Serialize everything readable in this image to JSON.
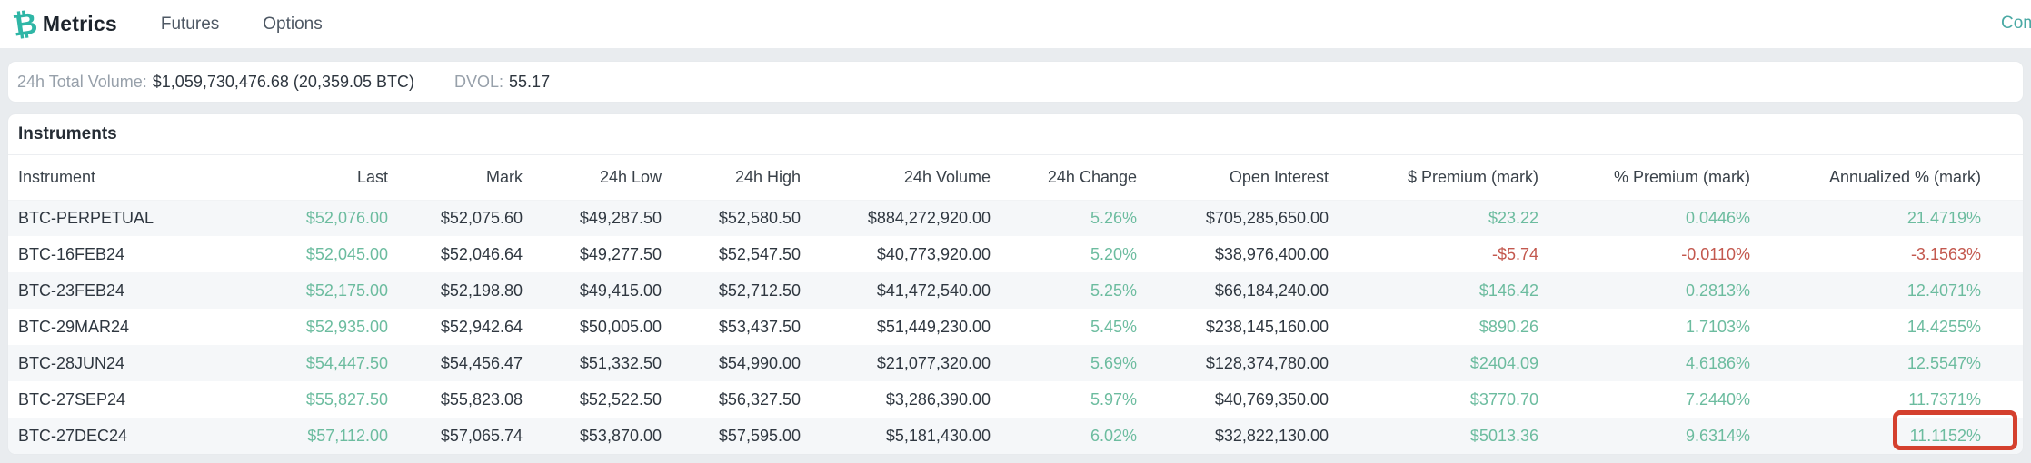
{
  "nav": {
    "brand": "Metrics",
    "brand_icon": "bitcoin-symbol",
    "items": [
      {
        "label": "Futures"
      },
      {
        "label": "Options"
      }
    ],
    "right_link": "Com"
  },
  "stats": {
    "volume_label": "24h Total Volume:",
    "volume_value": "$1,059,730,476.68 (20,359.05 BTC)",
    "dvol_label": "DVOL:",
    "dvol_value": "55.17"
  },
  "instruments": {
    "title": "Instruments",
    "columns": [
      "Instrument",
      "Last",
      "Mark",
      "24h Low",
      "24h High",
      "24h Volume",
      "24h Change",
      "Open Interest",
      "$ Premium (mark)",
      "% Premium (mark)",
      "Annualized % (mark)"
    ],
    "rows": [
      {
        "instrument": "BTC-PERPETUAL",
        "last": "$52,076.00",
        "mark": "$52,075.60",
        "low": "$49,287.50",
        "high": "$52,580.50",
        "volume": "$884,272,920.00",
        "change": "5.26%",
        "open_interest": "$705,285,650.00",
        "premium_usd": "$23.22",
        "premium_pct": "0.0446%",
        "annualized_pct": "21.4719%",
        "tone": "pos"
      },
      {
        "instrument": "BTC-16FEB24",
        "last": "$52,045.00",
        "mark": "$52,046.64",
        "low": "$49,277.50",
        "high": "$52,547.50",
        "volume": "$40,773,920.00",
        "change": "5.20%",
        "open_interest": "$38,976,400.00",
        "premium_usd": "-$5.74",
        "premium_pct": "-0.0110%",
        "annualized_pct": "-3.1563%",
        "tone": "neg"
      },
      {
        "instrument": "BTC-23FEB24",
        "last": "$52,175.00",
        "mark": "$52,198.80",
        "low": "$49,415.00",
        "high": "$52,712.50",
        "volume": "$41,472,540.00",
        "change": "5.25%",
        "open_interest": "$66,184,240.00",
        "premium_usd": "$146.42",
        "premium_pct": "0.2813%",
        "annualized_pct": "12.4071%",
        "tone": "pos"
      },
      {
        "instrument": "BTC-29MAR24",
        "last": "$52,935.00",
        "mark": "$52,942.64",
        "low": "$50,005.00",
        "high": "$53,437.50",
        "volume": "$51,449,230.00",
        "change": "5.45%",
        "open_interest": "$238,145,160.00",
        "premium_usd": "$890.26",
        "premium_pct": "1.7103%",
        "annualized_pct": "14.4255%",
        "tone": "pos"
      },
      {
        "instrument": "BTC-28JUN24",
        "last": "$54,447.50",
        "mark": "$54,456.47",
        "low": "$51,332.50",
        "high": "$54,990.00",
        "volume": "$21,077,320.00",
        "change": "5.69%",
        "open_interest": "$128,374,780.00",
        "premium_usd": "$2404.09",
        "premium_pct": "4.6186%",
        "annualized_pct": "12.5547%",
        "tone": "pos"
      },
      {
        "instrument": "BTC-27SEP24",
        "last": "$55,827.50",
        "mark": "$55,823.08",
        "low": "$52,522.50",
        "high": "$56,327.50",
        "volume": "$3,286,390.00",
        "change": "5.97%",
        "open_interest": "$40,769,350.00",
        "premium_usd": "$3770.70",
        "premium_pct": "7.2440%",
        "annualized_pct": "11.7371%",
        "tone": "pos"
      },
      {
        "instrument": "BTC-27DEC24",
        "last": "$57,112.00",
        "mark": "$57,065.74",
        "low": "$53,870.00",
        "high": "$57,595.00",
        "volume": "$5,181,430.00",
        "change": "6.02%",
        "open_interest": "$32,822,130.00",
        "premium_usd": "$5013.36",
        "premium_pct": "9.6314%",
        "annualized_pct": "11.1152%",
        "tone": "pos"
      }
    ]
  },
  "annotation": {
    "highlighted_value": "11.1152%",
    "highlighted_row": "BTC-27DEC24",
    "highlighted_column": "Annualized % (mark)"
  },
  "colors": {
    "positive_green": "#6cbc9f",
    "negative_red": "#c3584e",
    "annotation_red": "#d4402e",
    "brand_teal": "#2fb6a6",
    "link_teal": "#4aa9a4",
    "zebra_row": "#f5f7f9",
    "page_background": "#e9ecef"
  }
}
